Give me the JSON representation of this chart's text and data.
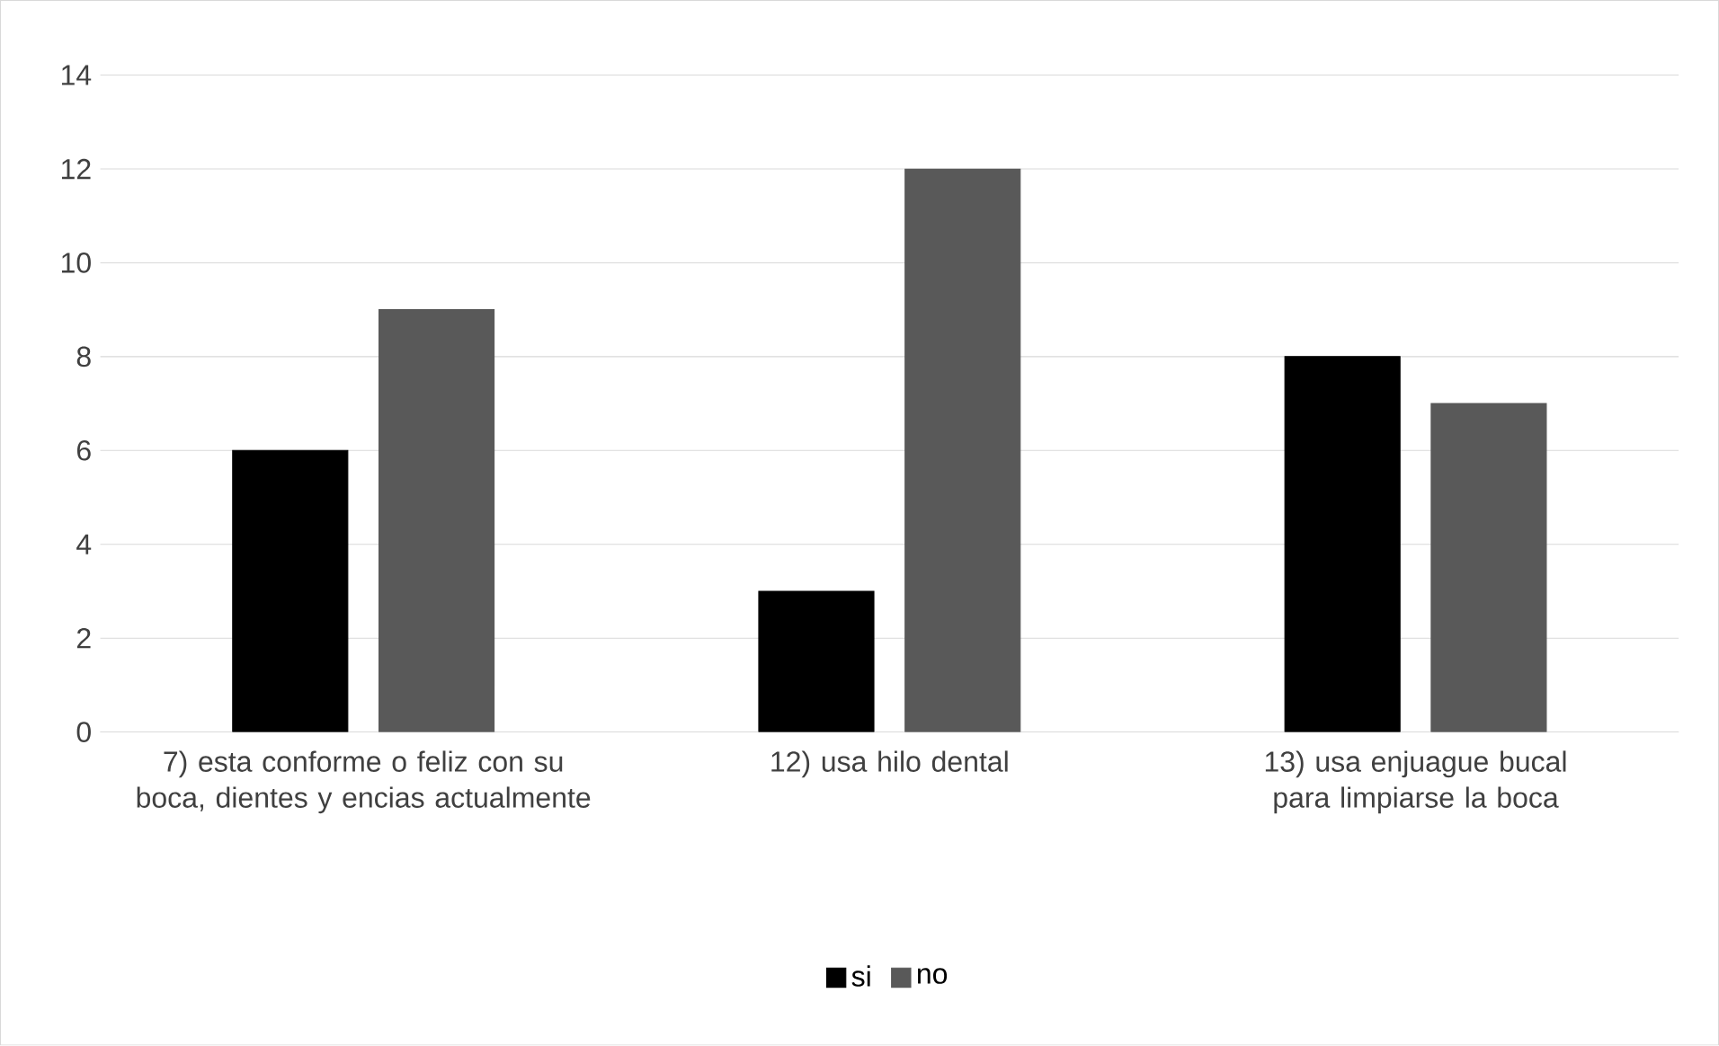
{
  "chart_data": {
    "type": "bar",
    "categories": [
      "7) esta conforme o feliz con su boca, dientes y encias actualmente",
      "12) usa hilo dental",
      "13) usa enjuague bucal para limpiarse la boca"
    ],
    "series": [
      {
        "name": "si",
        "color": "#000000",
        "values": [
          6,
          3,
          8
        ]
      },
      {
        "name": "no",
        "color": "#595959",
        "values": [
          9,
          12,
          7
        ]
      }
    ],
    "ylim": [
      0,
      14
    ],
    "yticks": [
      0,
      2,
      4,
      6,
      8,
      10,
      12,
      14
    ],
    "grid": "y",
    "legend": "bottom"
  }
}
